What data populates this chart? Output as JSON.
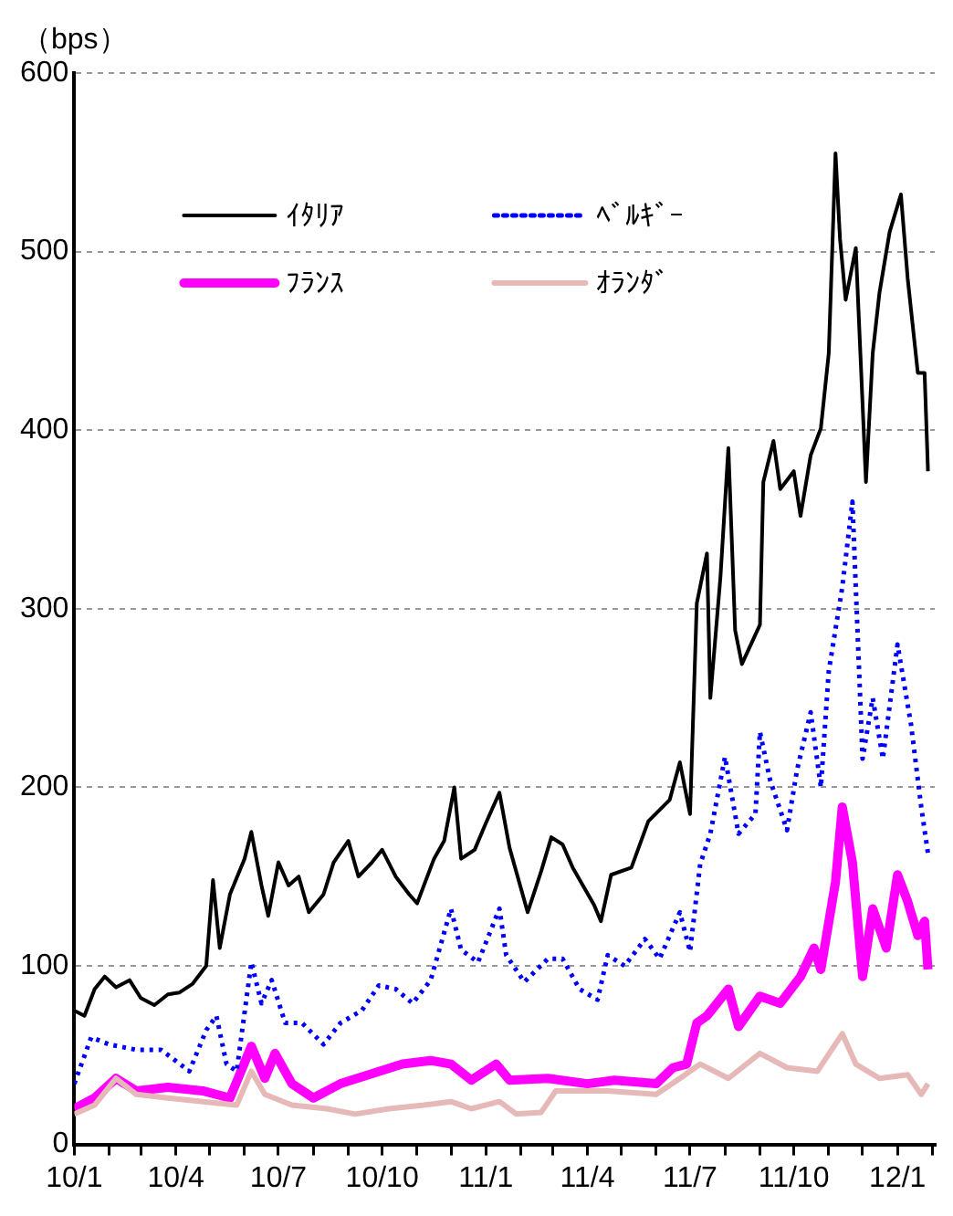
{
  "chart_data": {
    "type": "line",
    "ylabel": "（bps）",
    "xlim": [
      "2010-01-01",
      "2012-02-03"
    ],
    "ylim": [
      0,
      600
    ],
    "yticks": [
      0,
      100,
      200,
      300,
      400,
      500,
      600
    ],
    "xticks": [
      {
        "value": "2010-01-01",
        "label": "10/1"
      },
      {
        "value": "2010-02-01",
        "label": null
      },
      {
        "value": "2010-03-01",
        "label": null
      },
      {
        "value": "2010-04-01",
        "label": "10/4"
      },
      {
        "value": "2010-05-01",
        "label": null
      },
      {
        "value": "2010-06-01",
        "label": null
      },
      {
        "value": "2010-07-01",
        "label": "10/7"
      },
      {
        "value": "2010-08-01",
        "label": null
      },
      {
        "value": "2010-09-01",
        "label": null
      },
      {
        "value": "2010-10-01",
        "label": "10/10"
      },
      {
        "value": "2010-11-01",
        "label": null
      },
      {
        "value": "2010-12-01",
        "label": null
      },
      {
        "value": "2011-01-01",
        "label": "11/1"
      },
      {
        "value": "2011-02-01",
        "label": null
      },
      {
        "value": "2011-03-01",
        "label": null
      },
      {
        "value": "2011-04-01",
        "label": "11/4"
      },
      {
        "value": "2011-05-01",
        "label": null
      },
      {
        "value": "2011-06-01",
        "label": null
      },
      {
        "value": "2011-07-01",
        "label": "11/7"
      },
      {
        "value": "2011-08-01",
        "label": null
      },
      {
        "value": "2011-09-01",
        "label": null
      },
      {
        "value": "2011-10-01",
        "label": "11/10"
      },
      {
        "value": "2011-11-01",
        "label": null
      },
      {
        "value": "2011-12-01",
        "label": null
      },
      {
        "value": "2012-01-01",
        "label": "12/1"
      },
      {
        "value": "2012-02-01",
        "label": null
      }
    ],
    "grid": "y",
    "legend": "top left",
    "series": [
      {
        "name": "ｲﾀﾘｱ",
        "color": "#000000",
        "line_style": "solid",
        "x": [
          "2010-01-01",
          "2010-01-10",
          "2010-01-19",
          "2010-01-28",
          "2010-02-07",
          "2010-02-19",
          "2010-03-01",
          "2010-03-13",
          "2010-03-25",
          "2010-04-04",
          "2010-04-16",
          "2010-04-28",
          "2010-05-04",
          "2010-05-10",
          "2010-05-19",
          "2010-06-01",
          "2010-06-07",
          "2010-06-16",
          "2010-06-22",
          "2010-07-01",
          "2010-07-10",
          "2010-07-19",
          "2010-07-28",
          "2010-08-10",
          "2010-08-19",
          "2010-09-01",
          "2010-09-10",
          "2010-09-22",
          "2010-10-01",
          "2010-10-13",
          "2010-10-25",
          "2010-11-01",
          "2010-11-16",
          "2010-11-25",
          "2010-12-04",
          "2010-12-10",
          "2010-12-22",
          "2011-01-01",
          "2011-01-13",
          "2011-01-22",
          "2011-02-07",
          "2011-02-19",
          "2011-02-28",
          "2011-03-10",
          "2011-03-19",
          "2011-04-07",
          "2011-04-13",
          "2011-04-22",
          "2011-05-10",
          "2011-05-25",
          "2011-06-13",
          "2011-06-22",
          "2011-07-01",
          "2011-07-07",
          "2011-07-16",
          "2011-07-19",
          "2011-07-28",
          "2011-08-04",
          "2011-08-10",
          "2011-08-16",
          "2011-09-01",
          "2011-09-04",
          "2011-09-13",
          "2011-09-19",
          "2011-10-01",
          "2011-10-07",
          "2011-10-16",
          "2011-10-25",
          "2011-11-01",
          "2011-11-07",
          "2011-11-11",
          "2011-11-16",
          "2011-11-25",
          "2011-12-04",
          "2011-12-10",
          "2011-12-16",
          "2011-12-25",
          "2012-01-04",
          "2012-01-10",
          "2012-01-19",
          "2012-01-25",
          "2012-01-28"
        ],
        "values": [
          75,
          72,
          87,
          94,
          88,
          92,
          82,
          78,
          84,
          85,
          90,
          100,
          148,
          110,
          140,
          160,
          175,
          145,
          128,
          158,
          145,
          150,
          130,
          140,
          158,
          170,
          150,
          158,
          165,
          150,
          140,
          135,
          160,
          170,
          200,
          160,
          165,
          180,
          197,
          166,
          130,
          153,
          172,
          168,
          155,
          134,
          125,
          151,
          155,
          181,
          193,
          214,
          185,
          303,
          331,
          250,
          318,
          390,
          288,
          269,
          291,
          371,
          394,
          367,
          377,
          352,
          386,
          401,
          443,
          555,
          507,
          473,
          502,
          371,
          443,
          477,
          511,
          532,
          485,
          432,
          432,
          377
        ]
      },
      {
        "name": "ﾍﾞﾙｷﾞｰ",
        "color": "#0000ff",
        "line_style": "dotted",
        "x": [
          "2010-01-01",
          "2010-01-16",
          "2010-02-01",
          "2010-02-25",
          "2010-03-19",
          "2010-04-13",
          "2010-04-28",
          "2010-05-07",
          "2010-05-16",
          "2010-05-25",
          "2010-06-07",
          "2010-06-16",
          "2010-06-25",
          "2010-07-07",
          "2010-07-22",
          "2010-08-10",
          "2010-08-25",
          "2010-09-13",
          "2010-09-28",
          "2010-10-13",
          "2010-10-28",
          "2010-11-13",
          "2010-12-01",
          "2010-12-10",
          "2010-12-25",
          "2011-01-13",
          "2011-01-19",
          "2011-02-04",
          "2011-02-25",
          "2011-03-10",
          "2011-03-25",
          "2011-04-10",
          "2011-04-19",
          "2011-05-04",
          "2011-05-22",
          "2011-06-04",
          "2011-06-22",
          "2011-07-01",
          "2011-07-10",
          "2011-07-19",
          "2011-08-01",
          "2011-08-13",
          "2011-08-28",
          "2011-09-01",
          "2011-09-10",
          "2011-09-25",
          "2011-10-04",
          "2011-10-16",
          "2011-10-25",
          "2011-11-01",
          "2011-11-13",
          "2011-11-22",
          "2011-12-01",
          "2011-12-10",
          "2011-12-19",
          "2012-01-01",
          "2012-01-13",
          "2012-01-22",
          "2012-01-28"
        ],
        "values": [
          34,
          60,
          56,
          53,
          53,
          41,
          64,
          72,
          45,
          41,
          102,
          79,
          92,
          68,
          68,
          56,
          68,
          75,
          89,
          87,
          79,
          92,
          132,
          109,
          102,
          132,
          106,
          91,
          104,
          104,
          87,
          81,
          106,
          100,
          115,
          104,
          130,
          108,
          157,
          174,
          217,
          174,
          185,
          231,
          204,
          176,
          210,
          242,
          200,
          265,
          312,
          360,
          216,
          250,
          216,
          280,
          235,
          189,
          163
        ]
      },
      {
        "name": "ﾌﾗﾝｽ",
        "color": "#ff00ff",
        "line_style": "solid",
        "x": [
          "2010-01-01",
          "2010-01-19",
          "2010-02-07",
          "2010-02-25",
          "2010-03-25",
          "2010-04-25",
          "2010-05-19",
          "2010-06-07",
          "2010-06-19",
          "2010-06-28",
          "2010-07-13",
          "2010-08-01",
          "2010-08-25",
          "2010-09-19",
          "2010-10-19",
          "2010-11-13",
          "2010-12-01",
          "2010-12-19",
          "2011-01-10",
          "2011-01-22",
          "2011-02-25",
          "2011-04-01",
          "2011-04-25",
          "2011-06-01",
          "2011-06-16",
          "2011-06-28",
          "2011-07-07",
          "2011-07-16",
          "2011-08-04",
          "2011-08-13",
          "2011-09-01",
          "2011-09-19",
          "2011-10-07",
          "2011-10-19",
          "2011-10-25",
          "2011-11-07",
          "2011-11-13",
          "2011-11-22",
          "2011-12-01",
          "2011-12-10",
          "2011-12-22",
          "2012-01-01",
          "2012-01-10",
          "2012-01-19",
          "2012-01-25",
          "2012-01-28"
        ],
        "values": [
          20,
          26,
          37,
          30,
          32,
          30,
          26,
          55,
          37,
          51,
          34,
          26,
          34,
          39,
          45,
          47,
          45,
          36,
          45,
          36,
          37,
          34,
          36,
          34,
          43,
          45,
          68,
          72,
          87,
          66,
          83,
          79,
          94,
          110,
          98,
          147,
          189,
          158,
          94,
          132,
          110,
          151,
          136,
          117,
          125,
          98
        ]
      },
      {
        "name": "ｵﾗﾝﾀﾞ",
        "color": "#e6b8b7",
        "line_style": "solid",
        "x": [
          "2010-01-01",
          "2010-01-19",
          "2010-02-07",
          "2010-02-25",
          "2010-03-25",
          "2010-04-25",
          "2010-05-25",
          "2010-06-07",
          "2010-06-19",
          "2010-07-13",
          "2010-08-13",
          "2010-09-07",
          "2010-10-07",
          "2010-11-07",
          "2010-12-01",
          "2010-12-19",
          "2011-01-13",
          "2011-01-28",
          "2011-02-19",
          "2011-03-04",
          "2011-04-19",
          "2011-06-01",
          "2011-06-22",
          "2011-07-10",
          "2011-08-04",
          "2011-09-01",
          "2011-09-25",
          "2011-10-22",
          "2011-11-13",
          "2011-11-25",
          "2011-12-16",
          "2012-01-10",
          "2012-01-22",
          "2012-01-28"
        ],
        "values": [
          17,
          22,
          37,
          28,
          26,
          24,
          22,
          41,
          28,
          22,
          20,
          17,
          20,
          22,
          24,
          20,
          24,
          17,
          18,
          30,
          30,
          28,
          37,
          45,
          37,
          51,
          43,
          41,
          62,
          45,
          37,
          39,
          28,
          34
        ]
      }
    ]
  }
}
